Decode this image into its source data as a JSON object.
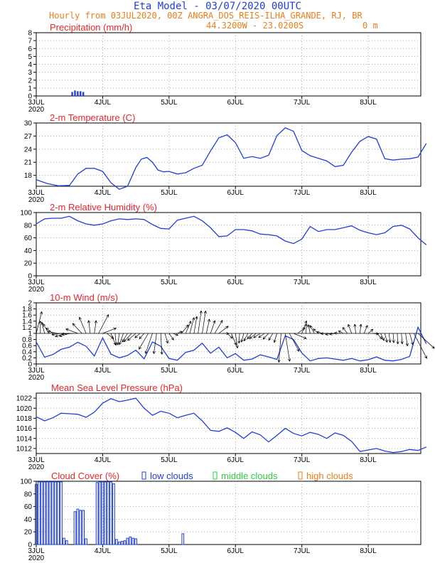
{
  "header": {
    "title": "Eta Model - 03/07/2020 00UTC",
    "subtitle": "Hourly from 03JUL2020, 00Z  ANGRA_DOS_REIS-ILHA_GRANDE, RJ, BR",
    "coords": "44.3200W - 23.0200S",
    "elevation": "0  m"
  },
  "colors": {
    "title": "#1f3fd8",
    "subtitle": "#e87f1e",
    "panel_title": "#e8252a",
    "line": "#1f3fd8",
    "grid": "#9a9a9a",
    "low": "#1f3fd8",
    "middle": "#2ecc40",
    "high": "#e87f1e"
  },
  "x_axis": {
    "year": "2020",
    "ticks": [
      "3JUL",
      "4JUL",
      "5JUL",
      "6JUL",
      "7JUL",
      "8JUL"
    ]
  },
  "legend": {
    "low": "low clouds",
    "middle": "middle clouds",
    "high": "high clouds"
  },
  "chart_data": [
    {
      "id": "precip",
      "type": "bar",
      "title": "Precipitation (mm/h)",
      "ylim": [
        0,
        8
      ],
      "yticks": [
        "0",
        "1",
        "2",
        "3",
        "4",
        "5",
        "6",
        "7",
        "8"
      ],
      "x_hours": [
        13,
        14,
        15,
        16,
        17
      ],
      "values": [
        0.5,
        0.7,
        0.6,
        0.6,
        0.5
      ]
    },
    {
      "id": "temp",
      "type": "line",
      "title": "2-m Temperature (C)",
      "ylim": [
        15.5,
        30
      ],
      "yticks": [
        "18",
        "21",
        "24",
        "27",
        "30"
      ],
      "x": [
        0,
        4,
        8,
        12,
        15,
        18,
        21,
        24,
        27,
        30,
        33,
        36,
        38,
        40,
        42,
        44,
        46,
        48,
        51,
        54,
        57,
        60,
        63,
        66,
        69,
        72,
        75,
        78,
        81,
        84,
        87,
        90,
        93,
        96,
        99,
        102,
        105,
        108,
        111,
        114,
        117,
        120,
        123,
        126,
        129,
        132,
        135,
        138,
        141
      ],
      "values": [
        17.0,
        16.1,
        15.6,
        15.7,
        18.3,
        19.6,
        19.6,
        18.9,
        16.3,
        14.8,
        15.5,
        19.8,
        21.7,
        22.1,
        21.0,
        19.2,
        18.8,
        18.9,
        18.3,
        18.6,
        19.6,
        20.3,
        23.6,
        26.6,
        27.3,
        25.5,
        21.9,
        22.3,
        21.9,
        22.6,
        27.1,
        28.9,
        28.1,
        23.7,
        22.5,
        21.9,
        21.3,
        20.0,
        20.3,
        23.3,
        25.8,
        26.9,
        26.3,
        21.8,
        21.5,
        21.7,
        21.8,
        22.2,
        25.3
      ]
    },
    {
      "id": "rh",
      "type": "line",
      "title": "2-m Relative Humidity (%)",
      "ylim": [
        0,
        100
      ],
      "yticks": [
        "0",
        "20",
        "40",
        "60",
        "80",
        "100"
      ],
      "x": [
        0,
        3,
        6,
        9,
        12,
        15,
        18,
        21,
        24,
        27,
        30,
        33,
        36,
        39,
        42,
        45,
        48,
        51,
        54,
        57,
        60,
        63,
        66,
        69,
        72,
        75,
        78,
        81,
        84,
        87,
        90,
        93,
        96,
        99,
        102,
        105,
        108,
        111,
        114,
        117,
        120,
        123,
        126,
        129,
        132,
        135,
        138,
        141
      ],
      "values": [
        82,
        90,
        91,
        91,
        94,
        87,
        82,
        80,
        82,
        87,
        90,
        89,
        90,
        89,
        81,
        75,
        74,
        88,
        91,
        94,
        87,
        76,
        62,
        63,
        73,
        73,
        71,
        66,
        65,
        63,
        55,
        51,
        58,
        78,
        70,
        73,
        73,
        76,
        79,
        72,
        68,
        65,
        68,
        78,
        80,
        74,
        60,
        49
      ]
    },
    {
      "id": "wind",
      "type": "line",
      "title": "10-m Wind (m/s)",
      "ylim": [
        0,
        2
      ],
      "yticks": [
        "0",
        "0.2",
        "0.4",
        "0.6",
        "0.8",
        "1",
        "1.2",
        "1.4",
        "1.6",
        "1.8",
        "2"
      ],
      "x": [
        0,
        3,
        6,
        9,
        12,
        15,
        18,
        21,
        24,
        27,
        30,
        33,
        36,
        39,
        42,
        45,
        48,
        51,
        54,
        57,
        60,
        63,
        66,
        69,
        72,
        75,
        78,
        81,
        84,
        87,
        90,
        93,
        96,
        99,
        102,
        105,
        108,
        111,
        114,
        117,
        120,
        123,
        126,
        129,
        132,
        135,
        138,
        141
      ],
      "values": [
        0.72,
        0.22,
        0.31,
        0.48,
        0.55,
        0.71,
        0.58,
        0.26,
        0.85,
        0.32,
        0.2,
        0.28,
        0.45,
        0.17,
        0.72,
        0.58,
        0.18,
        0.12,
        0.38,
        0.45,
        0.68,
        0.35,
        0.55,
        0.2,
        0.34,
        0.12,
        0.16,
        0.3,
        0.23,
        0.15,
        0.92,
        0.8,
        0.36,
        0.1,
        0.18,
        0.2,
        0.16,
        0.12,
        0.18,
        0.1,
        0.14,
        0.23,
        0.12,
        0.1,
        0.15,
        0.25,
        1.2,
        0.66
      ]
    },
    {
      "id": "mslp",
      "type": "line",
      "title": "Mean Sea Level Pressure (hPa)",
      "ylim": [
        1011,
        1023
      ],
      "yticks": [
        "1012",
        "1014",
        "1016",
        "1018",
        "1020",
        "1022"
      ],
      "x": [
        0,
        3,
        6,
        9,
        12,
        15,
        18,
        21,
        24,
        27,
        30,
        33,
        36,
        39,
        42,
        45,
        48,
        51,
        54,
        57,
        60,
        63,
        66,
        69,
        72,
        75,
        78,
        81,
        84,
        87,
        90,
        93,
        96,
        99,
        102,
        105,
        108,
        111,
        114,
        117,
        120,
        123,
        126,
        129,
        132,
        135,
        138,
        141
      ],
      "values": [
        1018.3,
        1017.5,
        1018.1,
        1019.0,
        1018.9,
        1018.8,
        1018.2,
        1019.2,
        1021.0,
        1021.9,
        1021.3,
        1021.6,
        1022.0,
        1020.0,
        1018.6,
        1019.4,
        1019.0,
        1018.1,
        1018.6,
        1019.0,
        1017.5,
        1015.6,
        1015.4,
        1016.1,
        1015.2,
        1014.0,
        1015.3,
        1014.7,
        1013.3,
        1014.6,
        1016.0,
        1015.0,
        1014.5,
        1015.2,
        1014.8,
        1014.0,
        1015.1,
        1014.6,
        1013.4,
        1011.4,
        1011.7,
        1012.0,
        1011.5,
        1011.2,
        1011.4,
        1011.8,
        1011.6,
        1012.3
      ]
    },
    {
      "id": "clouds",
      "type": "bar",
      "title": "Cloud Cover (%)",
      "ylim": [
        0,
        100
      ],
      "yticks": [
        "0",
        "20",
        "40",
        "60",
        "80",
        "100"
      ],
      "series": [
        {
          "name": "low clouds",
          "x_hours": [
            0,
            1,
            2,
            3,
            4,
            5,
            6,
            7,
            8,
            9,
            10,
            11,
            14,
            15,
            16,
            17,
            18,
            22,
            23,
            24,
            25,
            26,
            27,
            28,
            29,
            30,
            31,
            32,
            33,
            34,
            35,
            36,
            53
          ],
          "values": [
            95,
            99,
            99,
            99,
            99,
            99,
            99,
            99,
            99,
            99,
            10,
            6,
            52,
            56,
            54,
            54,
            9,
            98,
            99,
            99,
            99,
            99,
            99,
            96,
            8,
            4,
            5,
            6,
            10,
            12,
            10,
            9,
            17
          ]
        }
      ]
    }
  ]
}
